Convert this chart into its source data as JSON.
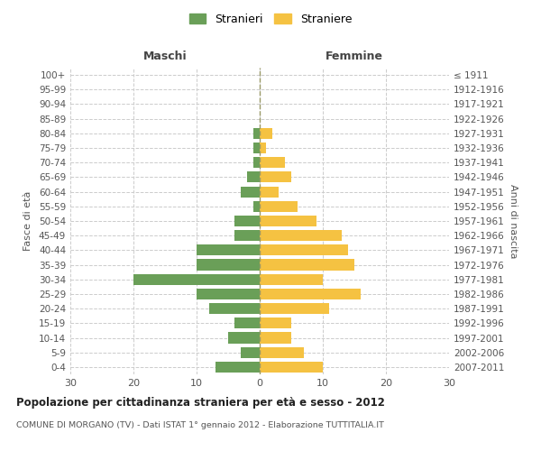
{
  "age_groups": [
    "0-4",
    "5-9",
    "10-14",
    "15-19",
    "20-24",
    "25-29",
    "30-34",
    "35-39",
    "40-44",
    "45-49",
    "50-54",
    "55-59",
    "60-64",
    "65-69",
    "70-74",
    "75-79",
    "80-84",
    "85-89",
    "90-94",
    "95-99",
    "100+"
  ],
  "birth_years": [
    "2007-2011",
    "2002-2006",
    "1997-2001",
    "1992-1996",
    "1987-1991",
    "1982-1986",
    "1977-1981",
    "1972-1976",
    "1967-1971",
    "1962-1966",
    "1957-1961",
    "1952-1956",
    "1947-1951",
    "1942-1946",
    "1937-1941",
    "1932-1936",
    "1927-1931",
    "1922-1926",
    "1917-1921",
    "1912-1916",
    "≤ 1911"
  ],
  "maschi": [
    7,
    3,
    5,
    4,
    8,
    10,
    20,
    10,
    10,
    4,
    4,
    1,
    3,
    2,
    1,
    1,
    1,
    0,
    0,
    0,
    0
  ],
  "femmine": [
    10,
    7,
    5,
    5,
    11,
    16,
    10,
    15,
    14,
    13,
    9,
    6,
    3,
    5,
    4,
    1,
    2,
    0,
    0,
    0,
    0
  ],
  "color_maschi": "#6a9f58",
  "color_femmine": "#f5c242",
  "title": "Popolazione per cittadinanza straniera per età e sesso - 2012",
  "subtitle": "COMUNE DI MORGANO (TV) - Dati ISTAT 1° gennaio 2012 - Elaborazione TUTTITALIA.IT",
  "ylabel_left": "Fasce di età",
  "ylabel_right": "Anni di nascita",
  "label_maschi": "Maschi",
  "label_femmine": "Femmine",
  "legend_maschi": "Stranieri",
  "legend_femmine": "Straniere",
  "xlim": 30,
  "background_color": "#ffffff",
  "grid_color": "#cccccc"
}
